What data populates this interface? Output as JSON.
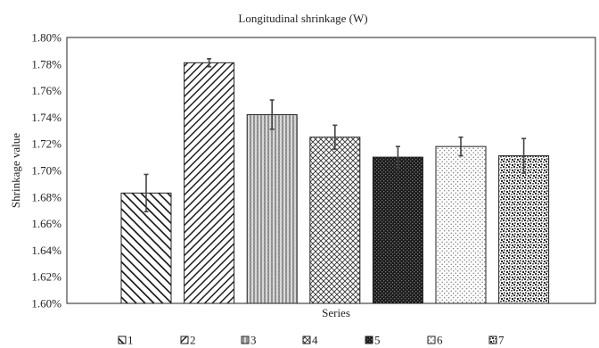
{
  "chart_data": {
    "type": "bar",
    "title": "Longitudinal shrinkage (W)",
    "xlabel": "Series",
    "ylabel": "Shrinkage value",
    "ylim": [
      1.6,
      1.8
    ],
    "y_ticks": [
      "1.60%",
      "1.62%",
      "1.64%",
      "1.66%",
      "1.68%",
      "1.70%",
      "1.72%",
      "1.74%",
      "1.76%",
      "1.78%",
      "1.80%"
    ],
    "y_tick_values": [
      1.6,
      1.62,
      1.64,
      1.66,
      1.68,
      1.7,
      1.72,
      1.74,
      1.76,
      1.78,
      1.8
    ],
    "unit": "%",
    "categories": [
      "1",
      "2",
      "3",
      "4",
      "5",
      "6",
      "7"
    ],
    "values": [
      1.683,
      1.781,
      1.742,
      1.725,
      1.71,
      1.718,
      1.711
    ],
    "errors": [
      0.014,
      0.003,
      0.011,
      0.009,
      0.008,
      0.007,
      0.013
    ],
    "patterns": [
      "diag-left",
      "diag-right",
      "vertical",
      "crosshatch",
      "dark-dense",
      "dots",
      "speckle"
    ],
    "legend": {
      "placement": "bottom",
      "entries": [
        "1",
        "2",
        "3",
        "4",
        "5",
        "6",
        "7"
      ]
    },
    "grid": false
  },
  "colors": {
    "bar_stroke": "#222222",
    "text": "#222222",
    "axis": "#222222",
    "background": "#ffffff"
  }
}
